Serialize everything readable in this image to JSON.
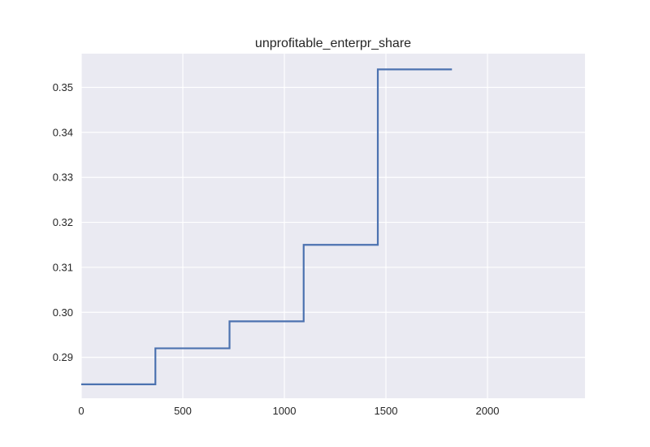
{
  "chart_data": {
    "type": "line",
    "title": "unprofitable_enterpr_share",
    "xlabel": "",
    "ylabel": "",
    "xlim": [
      0,
      2480
    ],
    "ylim": [
      0.2809,
      0.3575
    ],
    "x_ticks": [
      0,
      500,
      1000,
      1500,
      2000
    ],
    "x_tick_labels": [
      "0",
      "500",
      "1000",
      "1500",
      "2000"
    ],
    "y_ticks": [
      0.29,
      0.3,
      0.31,
      0.32,
      0.33,
      0.34,
      0.35
    ],
    "y_tick_labels": [
      "0.29",
      "0.30",
      "0.31",
      "0.32",
      "0.33",
      "0.34",
      "0.35"
    ],
    "grid": true,
    "step": "post",
    "series": [
      {
        "color": "#4c72b0",
        "x": [
          0,
          365,
          730,
          1095,
          1460,
          1825
        ],
        "y": [
          0.284,
          0.292,
          0.298,
          0.315,
          0.354,
          0.354
        ]
      }
    ],
    "colors": {
      "background": "#eaeaf2",
      "grid": "#ffffff",
      "line": "#4c72b0"
    }
  }
}
